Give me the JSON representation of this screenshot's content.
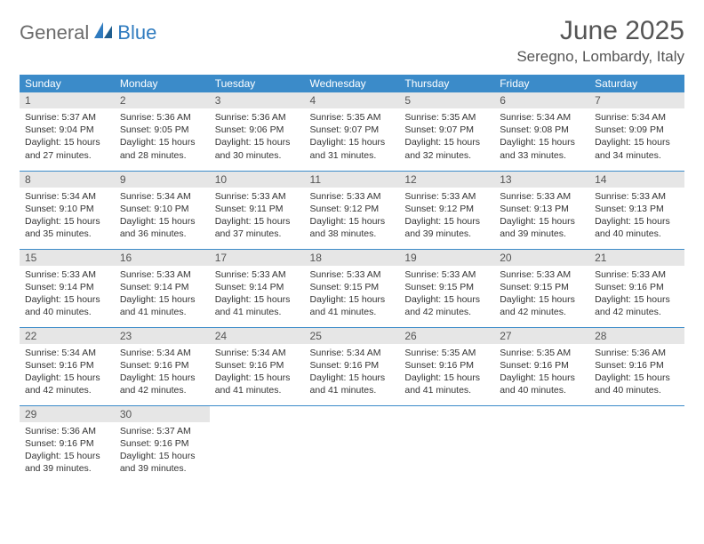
{
  "logo": {
    "text1": "General",
    "text2": "Blue"
  },
  "title": "June 2025",
  "subtitle": "Seregno, Lombardy, Italy",
  "colors": {
    "header_bg": "#3b8bc9",
    "header_text": "#ffffff",
    "daynum_bg": "#e6e6e6",
    "border": "#3b8bc9",
    "title_color": "#555555",
    "logo_gray": "#6b6b6b",
    "logo_blue": "#2f7bbf"
  },
  "weekdays": [
    "Sunday",
    "Monday",
    "Tuesday",
    "Wednesday",
    "Thursday",
    "Friday",
    "Saturday"
  ],
  "days": [
    {
      "n": "1",
      "sr": "5:37 AM",
      "ss": "9:04 PM",
      "dl": "15 hours and 27 minutes."
    },
    {
      "n": "2",
      "sr": "5:36 AM",
      "ss": "9:05 PM",
      "dl": "15 hours and 28 minutes."
    },
    {
      "n": "3",
      "sr": "5:36 AM",
      "ss": "9:06 PM",
      "dl": "15 hours and 30 minutes."
    },
    {
      "n": "4",
      "sr": "5:35 AM",
      "ss": "9:07 PM",
      "dl": "15 hours and 31 minutes."
    },
    {
      "n": "5",
      "sr": "5:35 AM",
      "ss": "9:07 PM",
      "dl": "15 hours and 32 minutes."
    },
    {
      "n": "6",
      "sr": "5:34 AM",
      "ss": "9:08 PM",
      "dl": "15 hours and 33 minutes."
    },
    {
      "n": "7",
      "sr": "5:34 AM",
      "ss": "9:09 PM",
      "dl": "15 hours and 34 minutes."
    },
    {
      "n": "8",
      "sr": "5:34 AM",
      "ss": "9:10 PM",
      "dl": "15 hours and 35 minutes."
    },
    {
      "n": "9",
      "sr": "5:34 AM",
      "ss": "9:10 PM",
      "dl": "15 hours and 36 minutes."
    },
    {
      "n": "10",
      "sr": "5:33 AM",
      "ss": "9:11 PM",
      "dl": "15 hours and 37 minutes."
    },
    {
      "n": "11",
      "sr": "5:33 AM",
      "ss": "9:12 PM",
      "dl": "15 hours and 38 minutes."
    },
    {
      "n": "12",
      "sr": "5:33 AM",
      "ss": "9:12 PM",
      "dl": "15 hours and 39 minutes."
    },
    {
      "n": "13",
      "sr": "5:33 AM",
      "ss": "9:13 PM",
      "dl": "15 hours and 39 minutes."
    },
    {
      "n": "14",
      "sr": "5:33 AM",
      "ss": "9:13 PM",
      "dl": "15 hours and 40 minutes."
    },
    {
      "n": "15",
      "sr": "5:33 AM",
      "ss": "9:14 PM",
      "dl": "15 hours and 40 minutes."
    },
    {
      "n": "16",
      "sr": "5:33 AM",
      "ss": "9:14 PM",
      "dl": "15 hours and 41 minutes."
    },
    {
      "n": "17",
      "sr": "5:33 AM",
      "ss": "9:14 PM",
      "dl": "15 hours and 41 minutes."
    },
    {
      "n": "18",
      "sr": "5:33 AM",
      "ss": "9:15 PM",
      "dl": "15 hours and 41 minutes."
    },
    {
      "n": "19",
      "sr": "5:33 AM",
      "ss": "9:15 PM",
      "dl": "15 hours and 42 minutes."
    },
    {
      "n": "20",
      "sr": "5:33 AM",
      "ss": "9:15 PM",
      "dl": "15 hours and 42 minutes."
    },
    {
      "n": "21",
      "sr": "5:33 AM",
      "ss": "9:16 PM",
      "dl": "15 hours and 42 minutes."
    },
    {
      "n": "22",
      "sr": "5:34 AM",
      "ss": "9:16 PM",
      "dl": "15 hours and 42 minutes."
    },
    {
      "n": "23",
      "sr": "5:34 AM",
      "ss": "9:16 PM",
      "dl": "15 hours and 42 minutes."
    },
    {
      "n": "24",
      "sr": "5:34 AM",
      "ss": "9:16 PM",
      "dl": "15 hours and 41 minutes."
    },
    {
      "n": "25",
      "sr": "5:34 AM",
      "ss": "9:16 PM",
      "dl": "15 hours and 41 minutes."
    },
    {
      "n": "26",
      "sr": "5:35 AM",
      "ss": "9:16 PM",
      "dl": "15 hours and 41 minutes."
    },
    {
      "n": "27",
      "sr": "5:35 AM",
      "ss": "9:16 PM",
      "dl": "15 hours and 40 minutes."
    },
    {
      "n": "28",
      "sr": "5:36 AM",
      "ss": "9:16 PM",
      "dl": "15 hours and 40 minutes."
    },
    {
      "n": "29",
      "sr": "5:36 AM",
      "ss": "9:16 PM",
      "dl": "15 hours and 39 minutes."
    },
    {
      "n": "30",
      "sr": "5:37 AM",
      "ss": "9:16 PM",
      "dl": "15 hours and 39 minutes."
    }
  ],
  "labels": {
    "sunrise": "Sunrise:",
    "sunset": "Sunset:",
    "daylight": "Daylight:"
  }
}
